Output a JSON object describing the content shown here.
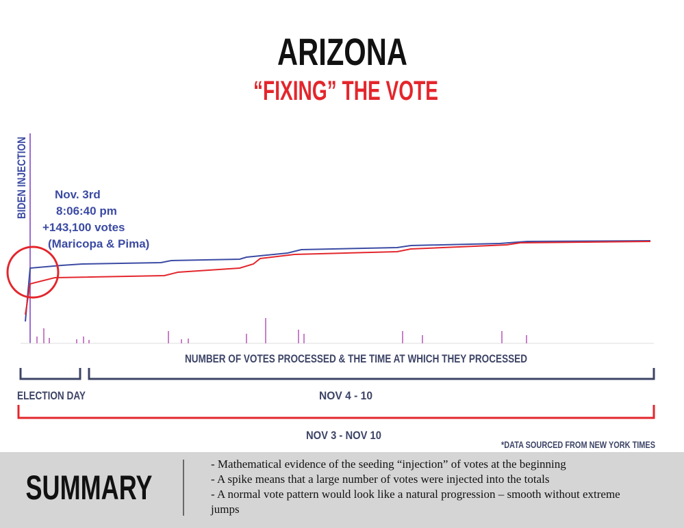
{
  "header": {
    "title": "ARIZONA",
    "subtitle": "“FIXING” THE VOTE"
  },
  "chart": {
    "vertical_label": "BIDEN INJECTION",
    "annotation": [
      "Nov. 3rd",
      "8:06:40 pm",
      "+143,100 votes",
      "(Maricopa & Pima)"
    ],
    "x_axis_label": "NUMBER OF VOTES PROCESSED & THE TIME AT WHICH THEY PROCESSED",
    "brackets": {
      "election_day": "ELECTION DAY",
      "nov_4_10": "NOV 4 - 10",
      "nov_3_10": "NOV 3 - NOV 10"
    },
    "source": "*DATA SOURCED FROM NEW YORK TIMES"
  },
  "summary": {
    "title": "SUMMARY",
    "bullets": [
      "- Mathematical evidence of the seeding “injection” of votes at the beginning",
      "- A spike means that a large number of votes were injected into the totals",
      "- A normal vote pattern would look like a natural progression – smooth without extreme jumps"
    ]
  }
}
